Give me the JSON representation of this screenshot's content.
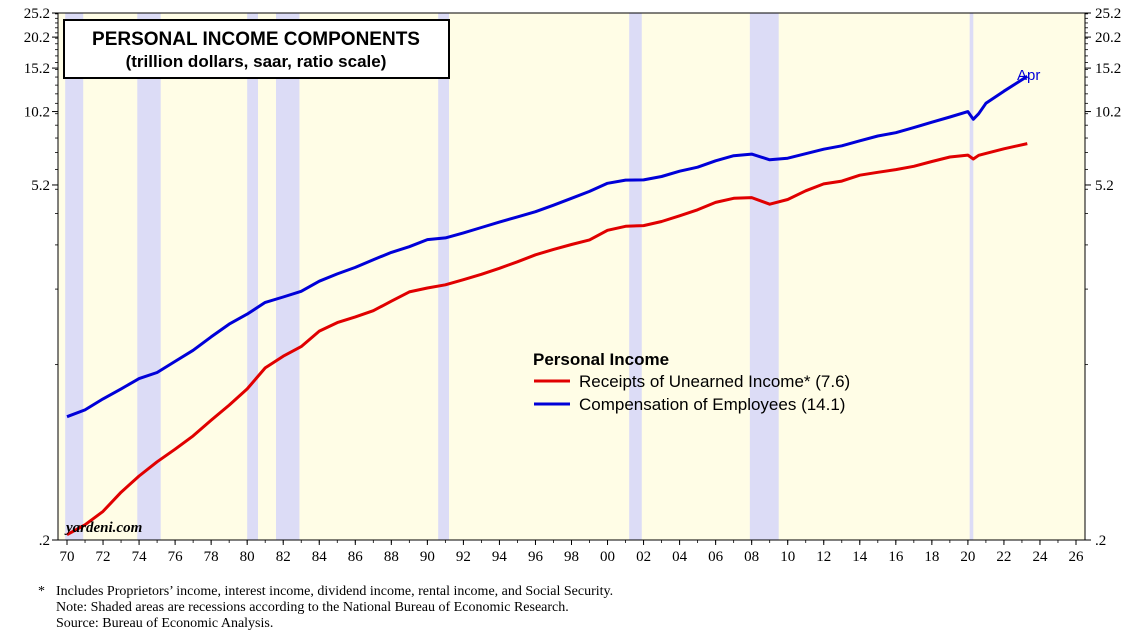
{
  "chart_data": {
    "type": "line",
    "title": "PERSONAL INCOME COMPONENTS",
    "subtitle": "(trillion dollars, saar, ratio scale)",
    "y_scale": "log",
    "ylim": [
      0.2,
      25.2
    ],
    "y_ticks": [
      0.2,
      5.2,
      10.2,
      15.2,
      20.2,
      25.2
    ],
    "y_tick_labels": [
      ".2",
      "5.2",
      "10.2",
      "15.2",
      "20.2",
      "25.2"
    ],
    "xlim": [
      1969.5,
      2026.5
    ],
    "x_ticks": [
      1970,
      1972,
      1974,
      1976,
      1978,
      1980,
      1982,
      1984,
      1986,
      1988,
      1990,
      1992,
      1994,
      1996,
      1998,
      2000,
      2002,
      2004,
      2006,
      2008,
      2010,
      2012,
      2014,
      2016,
      2018,
      2020,
      2022,
      2024,
      2026
    ],
    "x_tick_labels": [
      "70",
      "72",
      "74",
      "76",
      "78",
      "80",
      "82",
      "84",
      "86",
      "88",
      "90",
      "92",
      "94",
      "96",
      "98",
      "00",
      "02",
      "04",
      "06",
      "08",
      "10",
      "12",
      "14",
      "16",
      "18",
      "20",
      "22",
      "24",
      "26"
    ],
    "legend_title": "Personal Income",
    "annotation": "Apr",
    "watermark": "yardeni.com",
    "recessions": [
      [
        1969.9,
        1970.9
      ],
      [
        1973.9,
        1975.2
      ],
      [
        1980.0,
        1980.6
      ],
      [
        1981.6,
        1982.9
      ],
      [
        1990.6,
        1991.2
      ],
      [
        2001.2,
        2001.9
      ],
      [
        2007.9,
        2009.5
      ],
      [
        2020.1,
        2020.3
      ]
    ],
    "series": [
      {
        "name": "Receipts of Unearned Income* (7.6)",
        "color": "#e00000",
        "x": [
          1970,
          1971,
          1972,
          1973,
          1974,
          1975,
          1976,
          1977,
          1978,
          1979,
          1980,
          1981,
          1982,
          1983,
          1984,
          1985,
          1986,
          1987,
          1988,
          1989,
          1990,
          1991,
          1992,
          1993,
          1994,
          1995,
          1996,
          1997,
          1998,
          1999,
          2000,
          2001,
          2002,
          2003,
          2004,
          2005,
          2006,
          2007,
          2008,
          2009,
          2010,
          2011,
          2012,
          2013,
          2014,
          2015,
          2016,
          2017,
          2018,
          2019,
          2020,
          2020.3,
          2020.6,
          2021,
          2022,
          2023.3
        ],
        "values": [
          0.21,
          0.23,
          0.26,
          0.31,
          0.36,
          0.41,
          0.46,
          0.52,
          0.6,
          0.69,
          0.8,
          0.97,
          1.08,
          1.18,
          1.36,
          1.47,
          1.55,
          1.64,
          1.79,
          1.95,
          2.02,
          2.08,
          2.18,
          2.29,
          2.42,
          2.57,
          2.74,
          2.88,
          3.01,
          3.14,
          3.43,
          3.56,
          3.58,
          3.72,
          3.92,
          4.14,
          4.43,
          4.6,
          4.63,
          4.36,
          4.55,
          4.93,
          5.25,
          5.39,
          5.69,
          5.84,
          5.99,
          6.17,
          6.45,
          6.72,
          6.84,
          6.6,
          6.83,
          6.95,
          7.25,
          7.6
        ]
      },
      {
        "name": "Compensation of Employees (14.1)",
        "color": "#0000d8",
        "x": [
          1970,
          1971,
          1972,
          1973,
          1974,
          1975,
          1976,
          1977,
          1978,
          1979,
          1980,
          1981,
          1982,
          1983,
          1984,
          1985,
          1986,
          1987,
          1988,
          1989,
          1990,
          1991,
          1992,
          1993,
          1994,
          1995,
          1996,
          1997,
          1998,
          1999,
          2000,
          2001,
          2002,
          2003,
          2004,
          2005,
          2006,
          2007,
          2008,
          2009,
          2010,
          2011,
          2012,
          2013,
          2014,
          2015,
          2016,
          2017,
          2018,
          2019,
          2020,
          2020.3,
          2020.6,
          2021,
          2022,
          2023.3
        ],
        "values": [
          0.62,
          0.66,
          0.73,
          0.8,
          0.88,
          0.93,
          1.03,
          1.14,
          1.29,
          1.45,
          1.59,
          1.77,
          1.86,
          1.96,
          2.15,
          2.3,
          2.44,
          2.62,
          2.8,
          2.95,
          3.15,
          3.2,
          3.35,
          3.52,
          3.7,
          3.88,
          4.07,
          4.32,
          4.6,
          4.9,
          5.28,
          5.44,
          5.45,
          5.62,
          5.9,
          6.12,
          6.49,
          6.8,
          6.9,
          6.55,
          6.65,
          6.93,
          7.22,
          7.45,
          7.8,
          8.15,
          8.4,
          8.8,
          9.25,
          9.7,
          10.2,
          9.5,
          10.0,
          11.0,
          12.3,
          14.1
        ]
      }
    ]
  },
  "footnotes": {
    "asterisk": "*",
    "line1": "Includes Proprietors’ income, interest income, dividend income, rental income, and Social Security.",
    "line2": "Note: Shaded areas are recessions according to the National Bureau of Economic Research.",
    "line3": "Source: Bureau of Economic Analysis."
  }
}
